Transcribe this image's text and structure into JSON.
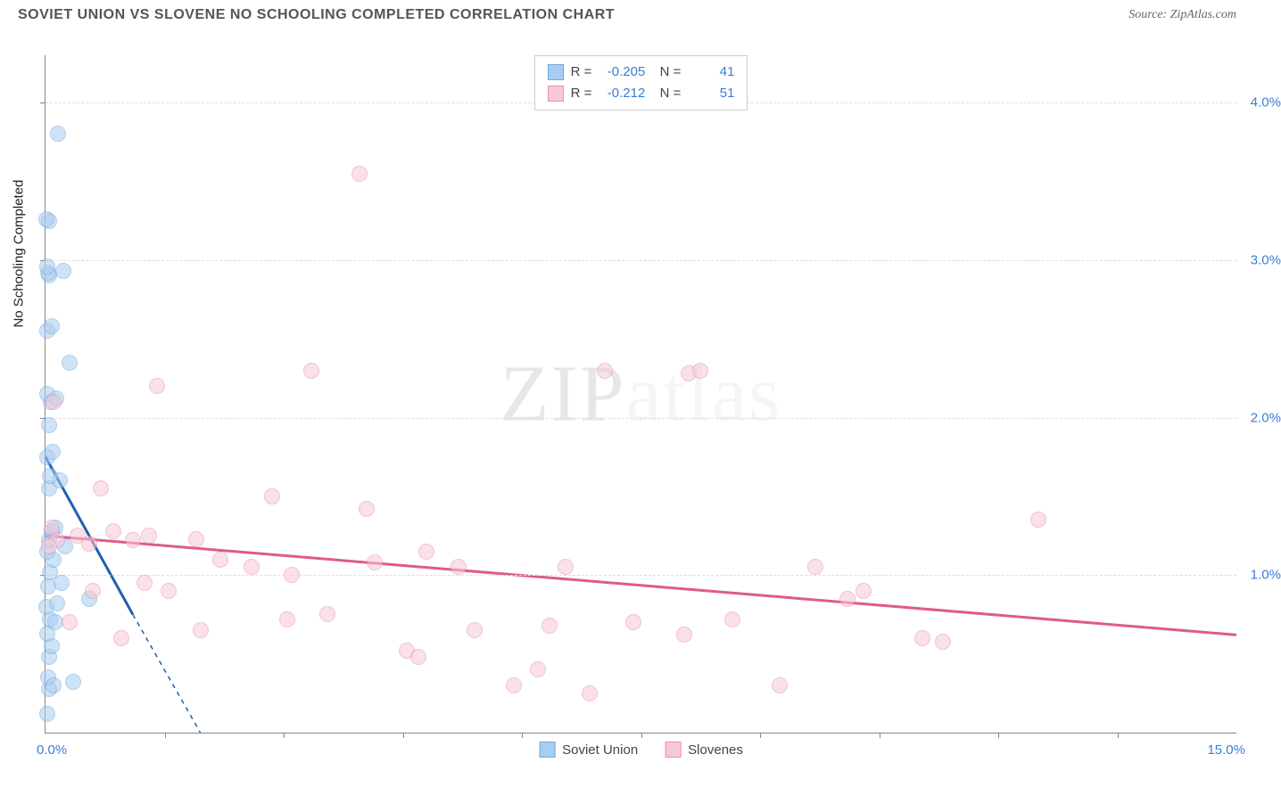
{
  "header": {
    "title": "SOVIET UNION VS SLOVENE NO SCHOOLING COMPLETED CORRELATION CHART",
    "source_prefix": "Source: ",
    "source": "ZipAtlas.com"
  },
  "watermark": {
    "part1": "ZIP",
    "part2": "atlas"
  },
  "chart": {
    "type": "scatter",
    "y_axis_title": "No Schooling Completed",
    "xlim": [
      0,
      15
    ],
    "ylim": [
      0,
      4.3
    ],
    "x_axis_labels": {
      "left": "0.0%",
      "right": "15.0%"
    },
    "y_ticks": [
      {
        "v": 1.0,
        "label": "1.0%"
      },
      {
        "v": 2.0,
        "label": "2.0%"
      },
      {
        "v": 3.0,
        "label": "3.0%"
      },
      {
        "v": 4.0,
        "label": "4.0%"
      }
    ],
    "x_tick_marks": [
      1.5,
      3.0,
      4.5,
      6.0,
      7.5,
      9.0,
      10.5,
      12.0,
      13.5
    ],
    "grid_color": "#dddddd",
    "background_color": "#ffffff",
    "marker_radius": 9,
    "marker_stroke_width": 1.5,
    "series": [
      {
        "name": "Soviet Union",
        "fill": "#a9cdf0",
        "stroke": "#6fa8e0",
        "fill_opacity": 0.55,
        "R": "-0.205",
        "N": "41",
        "trend": {
          "x1": 0.0,
          "y1": 1.75,
          "x2": 1.1,
          "y2": 0.75,
          "dash_x1": 1.1,
          "dash_y1": 0.75,
          "dash_x2": 1.95,
          "dash_y2": 0.0,
          "color": "#1f5fb0",
          "width": 3
        },
        "points": [
          [
            0.02,
            0.12
          ],
          [
            0.05,
            0.28
          ],
          [
            0.03,
            0.35
          ],
          [
            0.1,
            0.3
          ],
          [
            0.35,
            0.32
          ],
          [
            0.04,
            0.48
          ],
          [
            0.08,
            0.55
          ],
          [
            0.02,
            0.63
          ],
          [
            0.06,
            0.72
          ],
          [
            0.12,
            0.7
          ],
          [
            0.01,
            0.8
          ],
          [
            0.15,
            0.82
          ],
          [
            0.55,
            0.85
          ],
          [
            0.03,
            0.93
          ],
          [
            0.2,
            0.95
          ],
          [
            0.06,
            1.02
          ],
          [
            0.1,
            1.1
          ],
          [
            0.02,
            1.15
          ],
          [
            0.25,
            1.18
          ],
          [
            0.05,
            1.22
          ],
          [
            0.08,
            1.28
          ],
          [
            0.12,
            1.3
          ],
          [
            0.04,
            1.55
          ],
          [
            0.18,
            1.6
          ],
          [
            0.06,
            1.63
          ],
          [
            0.02,
            1.75
          ],
          [
            0.09,
            1.78
          ],
          [
            0.05,
            1.95
          ],
          [
            0.14,
            2.12
          ],
          [
            0.07,
            2.1
          ],
          [
            0.3,
            2.35
          ],
          [
            0.02,
            2.55
          ],
          [
            0.08,
            2.58
          ],
          [
            0.04,
            2.9
          ],
          [
            0.03,
            2.92
          ],
          [
            0.02,
            2.96
          ],
          [
            0.23,
            2.93
          ],
          [
            0.04,
            3.25
          ],
          [
            0.01,
            3.26
          ],
          [
            0.16,
            3.8
          ],
          [
            0.02,
            2.15
          ]
        ]
      },
      {
        "name": "Slovenes",
        "fill": "#f7c9d6",
        "stroke": "#e98fad",
        "fill_opacity": 0.55,
        "R": "-0.212",
        "N": "51",
        "trend": {
          "x1": 0.0,
          "y1": 1.25,
          "x2": 15.0,
          "y2": 0.62,
          "color": "#e05a8a",
          "width": 3
        },
        "points": [
          [
            0.1,
            2.1
          ],
          [
            0.08,
            1.3
          ],
          [
            0.15,
            1.22
          ],
          [
            0.05,
            1.18
          ],
          [
            0.4,
            1.25
          ],
          [
            0.55,
            1.2
          ],
          [
            0.7,
            1.55
          ],
          [
            0.85,
            1.28
          ],
          [
            1.1,
            1.22
          ],
          [
            1.25,
            0.95
          ],
          [
            1.3,
            1.25
          ],
          [
            1.55,
            0.9
          ],
          [
            1.9,
            1.23
          ],
          [
            1.95,
            0.65
          ],
          [
            2.2,
            1.1
          ],
          [
            2.6,
            1.05
          ],
          [
            2.85,
            1.5
          ],
          [
            3.05,
            0.72
          ],
          [
            3.35,
            2.3
          ],
          [
            3.55,
            0.75
          ],
          [
            3.95,
            3.55
          ],
          [
            4.05,
            1.42
          ],
          [
            4.15,
            1.08
          ],
          [
            4.55,
            0.52
          ],
          [
            4.7,
            0.48
          ],
          [
            4.8,
            1.15
          ],
          [
            5.2,
            1.05
          ],
          [
            5.4,
            0.65
          ],
          [
            5.9,
            0.3
          ],
          [
            6.2,
            0.4
          ],
          [
            6.35,
            0.68
          ],
          [
            6.55,
            1.05
          ],
          [
            6.85,
            0.25
          ],
          [
            7.05,
            2.3
          ],
          [
            7.4,
            0.7
          ],
          [
            8.05,
            0.62
          ],
          [
            8.1,
            2.28
          ],
          [
            8.25,
            2.3
          ],
          [
            8.65,
            0.72
          ],
          [
            9.25,
            0.3
          ],
          [
            9.7,
            1.05
          ],
          [
            10.1,
            0.85
          ],
          [
            10.3,
            0.9
          ],
          [
            11.05,
            0.6
          ],
          [
            11.3,
            0.58
          ],
          [
            12.5,
            1.35
          ],
          [
            1.4,
            2.2
          ],
          [
            0.6,
            0.9
          ],
          [
            0.3,
            0.7
          ],
          [
            0.95,
            0.6
          ],
          [
            3.1,
            1.0
          ]
        ]
      }
    ],
    "legend_bottom": [
      {
        "label": "Soviet Union",
        "fill": "#a9cdf0",
        "stroke": "#6fa8e0"
      },
      {
        "label": "Slovenes",
        "fill": "#f7c9d6",
        "stroke": "#e98fad"
      }
    ]
  }
}
